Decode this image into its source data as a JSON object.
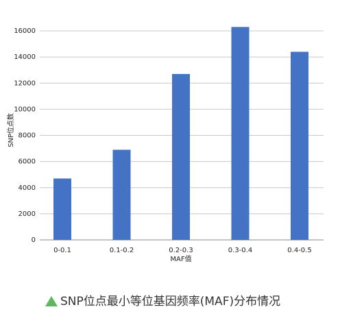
{
  "chart_data": {
    "type": "bar",
    "caption": "SNP位点最小等位基因频率(MAF)分布情况",
    "x_label": "MAF值",
    "y_label": "SNP位点数",
    "categories": [
      "0-0.1",
      "0.1-0.2",
      "0.2-0.3",
      "0.3-0.4",
      "0.4-0.5"
    ],
    "values": [
      4700,
      6900,
      12700,
      16300,
      14400
    ],
    "color": "#4472c4",
    "ylim": [
      0,
      17000
    ],
    "yticks": [
      0,
      2000,
      4000,
      6000,
      8000,
      10000,
      12000,
      14000,
      16000
    ],
    "grid": true
  }
}
